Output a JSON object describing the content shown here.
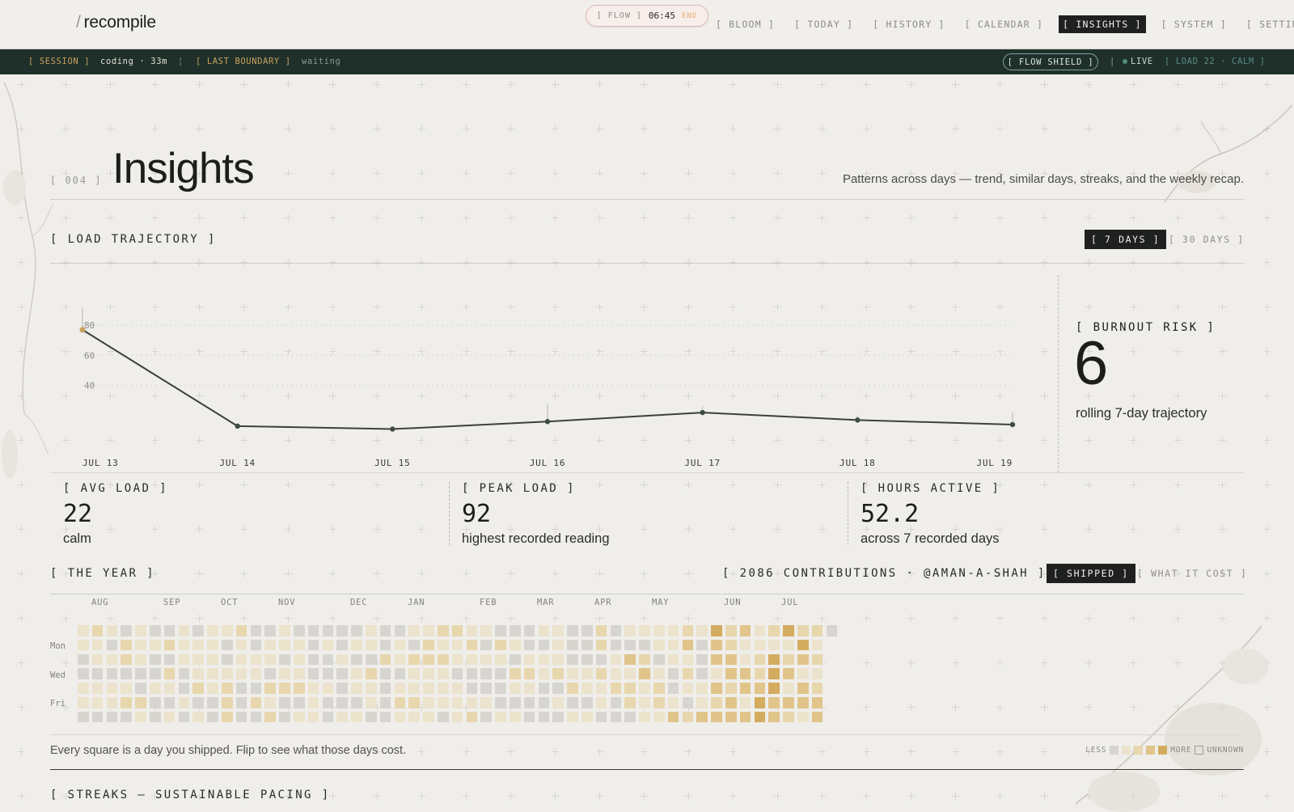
{
  "app": {
    "logo_slash": "/",
    "logo_name": "recompile"
  },
  "flow": {
    "label": "[ FLOW ]",
    "time": "06:45",
    "end_label": "END"
  },
  "nav": {
    "items": [
      {
        "label": "[ BLOOM ]",
        "active": false
      },
      {
        "label": "[ TODAY ]",
        "active": false
      },
      {
        "label": "[ HISTORY ]",
        "active": false
      },
      {
        "label": "[ CALENDAR ]",
        "active": false
      },
      {
        "label": "[ INSIGHTS ]",
        "active": true
      },
      {
        "label": "[ SYSTEM ]",
        "active": false
      },
      {
        "label": "[ SETTINGS ]",
        "active": false
      }
    ]
  },
  "status": {
    "session_label": "[ SESSION ]",
    "session_value": "coding · 33m",
    "separator": "¦",
    "boundary_label": "[ LAST BOUNDARY ]",
    "boundary_value": "waiting",
    "shield_label": "[ FLOW SHIELD ]",
    "pipe": "|",
    "live_label": "LIVE",
    "load_label": "[ LOAD 22 · CALM ]"
  },
  "page": {
    "section_number": "[ 004 ]",
    "title": "Insights",
    "subtitle": "Patterns across days — trend, similar days, streaks, and the weekly recap."
  },
  "trajectory": {
    "label": "[ LOAD TRAJECTORY ]",
    "toggle_7": "[ 7 DAYS ]",
    "toggle_30": "[ 30 DAYS ]",
    "selected_range": "7 DAYS"
  },
  "chart_data": {
    "type": "line",
    "title": "",
    "xlabel": "",
    "ylabel": "",
    "categories": [
      "JUL 13",
      "JUL 14",
      "JUL 15",
      "JUL 16",
      "JUL 17",
      "JUL 18",
      "JUL 19"
    ],
    "values": [
      77,
      13,
      11,
      16,
      22,
      17,
      14
    ],
    "peak_markers": [
      92,
      13,
      11,
      28,
      26,
      20,
      22
    ],
    "y_ticks": [
      "80",
      "60",
      "40"
    ],
    "y_tick_values": [
      80,
      60,
      40
    ],
    "ylim": [
      0,
      100
    ],
    "line_color": "#3d3f3c",
    "highlight_color": "#c9a25e",
    "grid": true
  },
  "burnout": {
    "label": "[ BURNOUT RISK ]",
    "value": "6",
    "subtitle": "rolling 7-day trajectory"
  },
  "stats": [
    {
      "label": "[ AVG LOAD ]",
      "value": "22",
      "sub": "calm"
    },
    {
      "label": "[ PEAK LOAD ]",
      "value": "92",
      "sub": "highest recorded reading"
    },
    {
      "label": "[ HOURS ACTIVE ]",
      "value": "52.2",
      "sub": "across 7 recorded days"
    }
  ],
  "year": {
    "label": "[ THE YEAR ]",
    "contributions": "[ 2086 CONTRIBUTIONS · @AMAN-A-SHAH ]",
    "toggle_shipped": "[ SHIPPED ]",
    "toggle_cost": "[ WHAT IT COST ]",
    "months": [
      "AUG",
      "SEP",
      "OCT",
      "NOV",
      "DEC",
      "JAN",
      "FEB",
      "MAR",
      "APR",
      "MAY",
      "JUN",
      "JUL"
    ],
    "day_labels": [
      "Mon",
      "Wed",
      "Fri"
    ],
    "footnote": "Every square is a day you shipped. Flip to see what those days cost.",
    "legend_less": "LESS",
    "legend_more": "MORE",
    "legend_unknown": "UNKNOWN",
    "palette": [
      "#d6d5d0",
      "#ece3cd",
      "#e8d6ad",
      "#e0c48a",
      "#d4ac5f"
    ]
  },
  "streaks": {
    "label": "[ STREAKS — SUSTAINABLE PACING ]"
  }
}
